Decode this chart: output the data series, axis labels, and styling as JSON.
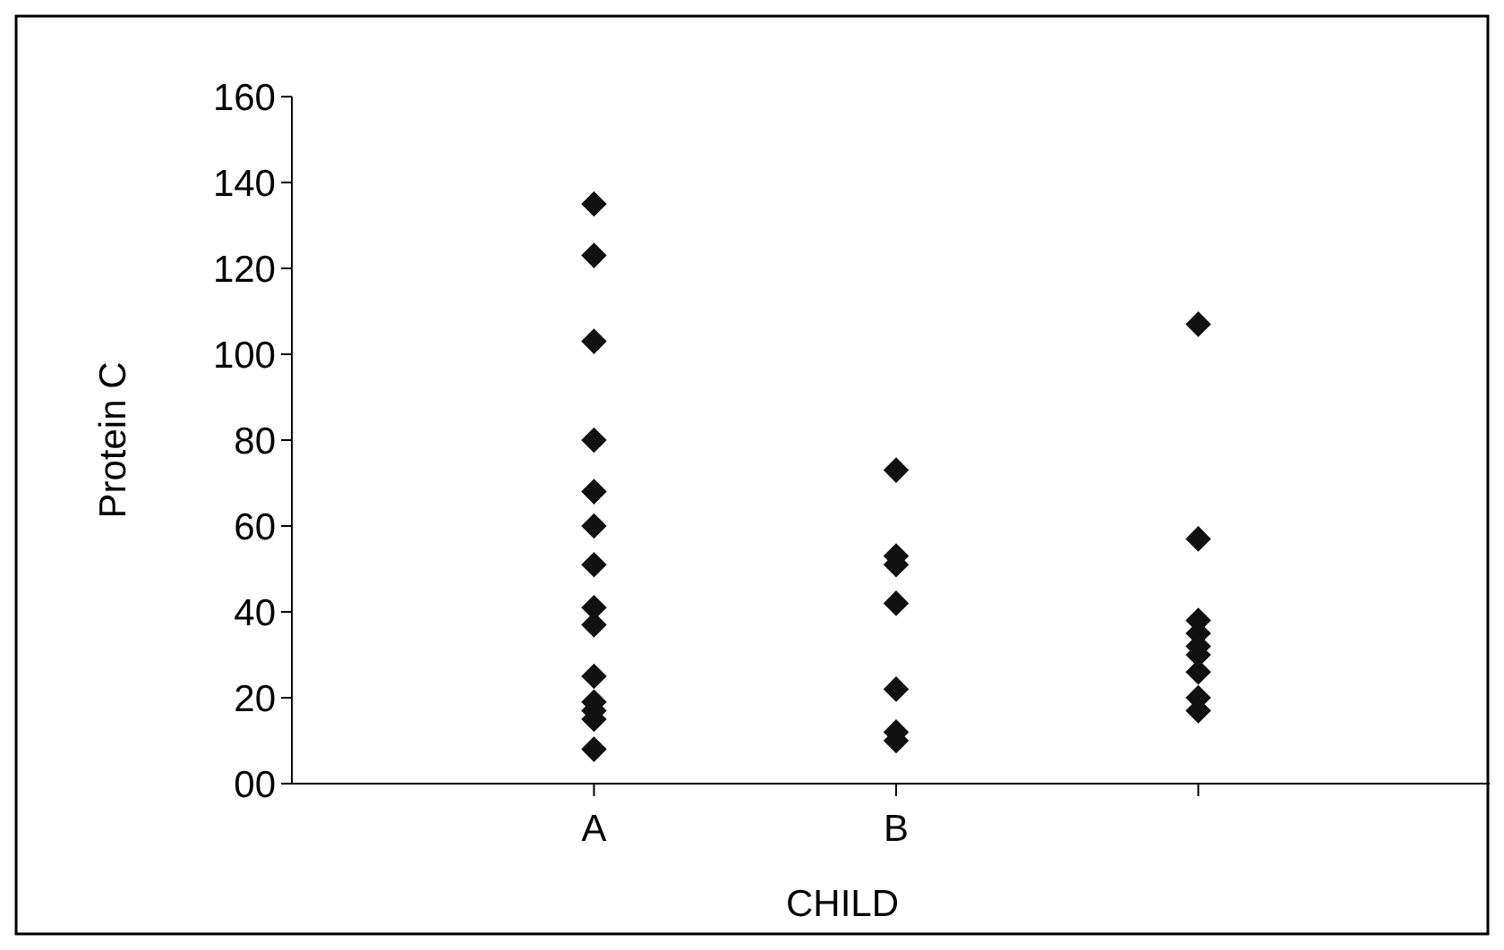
{
  "chart_data": {
    "type": "scatter",
    "xlabel": "CHILD",
    "ylabel": "Protein C",
    "categories": [
      "A",
      "B",
      null
    ],
    "ylim": [
      0,
      160
    ],
    "yticks": [
      {
        "value": 0,
        "label": "00"
      },
      20,
      40,
      60,
      80,
      100,
      120,
      140,
      160
    ],
    "marker": "diamond",
    "grid": false,
    "series": [
      {
        "color": "#111111",
        "x": [
          "A",
          "A",
          "A",
          "A",
          "A",
          "A",
          "A",
          "A",
          "A",
          "A",
          "A",
          "A",
          "A",
          "A"
        ],
        "values": [
          135,
          123,
          103,
          80,
          68,
          60,
          51,
          41,
          37,
          25,
          19,
          17,
          15,
          8
        ]
      },
      {
        "color": "#111111",
        "x": [
          "B",
          "B",
          "B",
          "B",
          "B",
          "B",
          "B"
        ],
        "values": [
          73,
          53,
          51,
          42,
          22,
          12,
          10
        ]
      },
      {
        "color": "#111111",
        "x": [
          null,
          null,
          null,
          null,
          null,
          null,
          null,
          null,
          null
        ],
        "values": [
          107,
          57,
          38,
          35,
          32,
          30,
          26,
          20,
          17
        ]
      }
    ]
  }
}
